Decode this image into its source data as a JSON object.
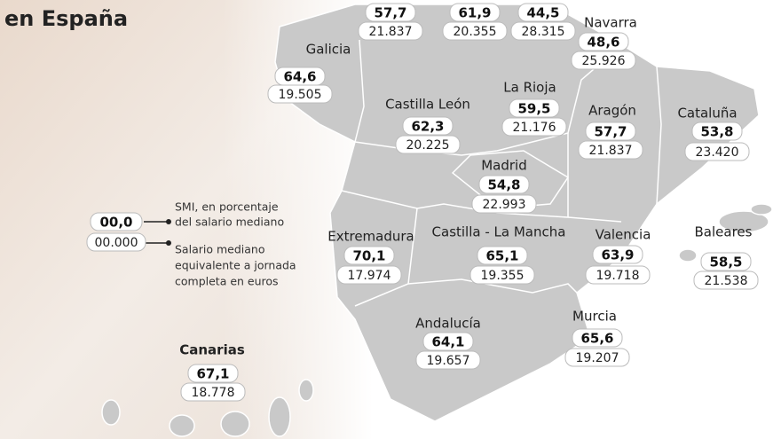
{
  "title": "en España",
  "legend": {
    "percent_sample": "00,0",
    "salary_sample": "00.000",
    "percent_text": [
      "SMI, en porcentaje",
      "del salario mediano"
    ],
    "salary_text": [
      "Salario mediano",
      "equivalente a jornada",
      "completa en euros"
    ]
  },
  "regions": [
    {
      "percent": "57,7",
      "salary": "21.837"
    },
    {
      "percent": "61,9",
      "salary": "20.355"
    },
    {
      "percent": "44,5",
      "salary": "28.315"
    },
    {
      "name": "Navarra",
      "percent": "48,6",
      "salary": "25.926"
    },
    {
      "name": "Galicia",
      "percent": "64,6",
      "salary": "19.505"
    },
    {
      "name": "Castilla León",
      "percent": "62,3",
      "salary": "20.225"
    },
    {
      "name": "La Rioja",
      "percent": "59,5",
      "salary": "21.176"
    },
    {
      "name": "Aragón",
      "percent": "57,7",
      "salary": "21.837"
    },
    {
      "name": "Cataluña",
      "percent": "53,8",
      "salary": "23.420"
    },
    {
      "name": "Madrid",
      "percent": "54,8",
      "salary": "22.993"
    },
    {
      "name": "Extremadura",
      "percent": "70,1",
      "salary": "17.974"
    },
    {
      "name": "Castilla - La Mancha",
      "percent": "65,1",
      "salary": "19.355"
    },
    {
      "name": "Valencia",
      "percent": "63,9",
      "salary": "19.718"
    },
    {
      "name": "Baleares",
      "percent": "58,5",
      "salary": "21.538"
    },
    {
      "name": "Andalucía",
      "percent": "64,1",
      "salary": "19.657"
    },
    {
      "name": "Murcia",
      "percent": "65,6",
      "salary": "19.207"
    },
    {
      "name": "Canarias",
      "percent": "67,1",
      "salary": "18.778"
    }
  ]
}
